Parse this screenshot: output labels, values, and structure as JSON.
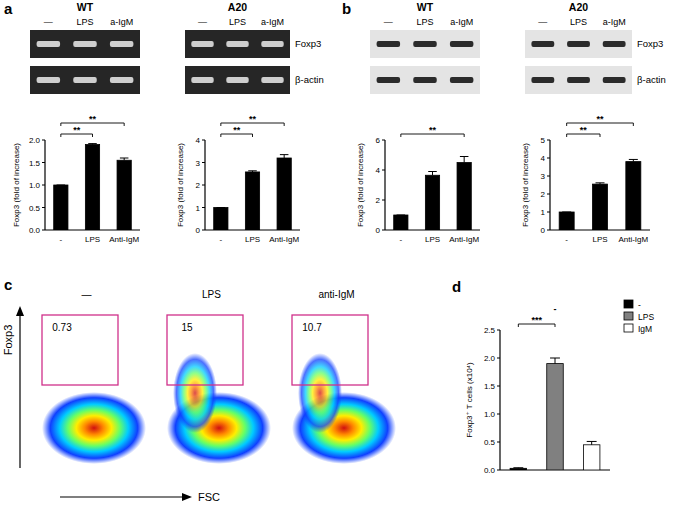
{
  "panel_labels": [
    "a",
    "b",
    "c",
    "d"
  ],
  "blots": [
    {
      "kind": "rt-pcr",
      "group": "WT",
      "lanes": [
        "—",
        "LPS",
        "a-IgM"
      ]
    },
    {
      "kind": "rt-pcr",
      "group": "A20",
      "lanes": [
        "—",
        "LPS",
        "a-IgM"
      ],
      "band_labels": [
        "Foxp3",
        "β-actin"
      ]
    },
    {
      "kind": "western",
      "group": "WT",
      "lanes": [
        "—",
        "LPS",
        "a-IgM"
      ]
    },
    {
      "kind": "western",
      "group": "A20",
      "lanes": [
        "—",
        "LPS",
        "a-IgM"
      ],
      "band_labels": [
        "Foxp3",
        "β-actin"
      ]
    }
  ],
  "chart_data": [
    {
      "type": "bar",
      "ylabel": "Foxp3 (fold of increase)",
      "categories": [
        "-",
        "LPS",
        "Anti-IgM"
      ],
      "values": [
        1,
        1.9,
        1.55
      ],
      "errors": [
        0,
        0.02,
        0.05
      ],
      "color": "#000000",
      "ylim": [
        0,
        2
      ],
      "yticks": [
        {
          "value": 0,
          "label": "0.0"
        },
        {
          "value": 0.5,
          "label": "0.5"
        },
        {
          "value": 1,
          "label": "1.0"
        },
        {
          "value": 1.5,
          "label": "1.5"
        },
        {
          "value": 2,
          "label": "2.0"
        }
      ],
      "annotations": [
        {
          "text": "**",
          "from": "-",
          "to": "LPS"
        },
        {
          "text": "**",
          "from": "-",
          "to": "Anti-IgM"
        }
      ]
    },
    {
      "type": "bar",
      "ylabel": "Foxp3 (fold of increase)",
      "categories": [
        "-",
        "LPS",
        "Anti-IgM"
      ],
      "values": [
        1,
        2.58,
        3.2
      ],
      "errors": [
        0,
        0.05,
        0.15
      ],
      "color": "#000000",
      "ylim": [
        0,
        4
      ],
      "yticks": [
        0,
        1,
        2,
        3,
        4
      ],
      "annotations": [
        {
          "text": "**",
          "from": "-",
          "to": "LPS"
        },
        {
          "text": "**",
          "from": "-",
          "to": "Anti-IgM"
        }
      ]
    },
    {
      "type": "bar",
      "ylabel": "Foxp3 (fold of increase)",
      "categories": [
        "-",
        "LPS",
        "Anti-IgM"
      ],
      "values": [
        1,
        3.65,
        4.5
      ],
      "errors": [
        0,
        0.25,
        0.4
      ],
      "color": "#000000",
      "ylim": [
        0,
        6
      ],
      "yticks": [
        0,
        2,
        4,
        6
      ],
      "annotations": [
        {
          "text": "**",
          "from": "-",
          "to": "Anti-IgM"
        }
      ]
    },
    {
      "type": "bar",
      "ylabel": "Foxp3 (fold of increase)",
      "categories": [
        "-",
        "LPS",
        "Anti-IgM"
      ],
      "values": [
        1,
        2.55,
        3.8
      ],
      "errors": [
        0,
        0.07,
        0.12
      ],
      "color": "#000000",
      "ylim": [
        0,
        5
      ],
      "yticks": [
        0,
        1,
        2,
        3,
        4,
        5
      ],
      "annotations": [
        {
          "text": "**",
          "from": "-",
          "to": "LPS"
        },
        {
          "text": "**",
          "from": "-",
          "to": "Anti-IgM"
        }
      ]
    },
    {
      "type": "flow",
      "xlabel": "FSC",
      "ylabel": "Foxp3",
      "categories": [
        "—",
        "LPS",
        "anti-IgM"
      ],
      "values": [
        0.73,
        15,
        10.7
      ],
      "data_labels": true
    },
    {
      "type": "bar",
      "ylabel": "Foxp3⁺ T cells (x10⁴)",
      "categories": [
        "-",
        "LPS",
        "IgM"
      ],
      "values": [
        0.03,
        1.9,
        0.45
      ],
      "errors": [
        0.01,
        0.1,
        0.06
      ],
      "colors": [
        "#000000",
        "#808080",
        "#ffffff"
      ],
      "ylim": [
        0,
        2.5
      ],
      "yticks": [
        {
          "value": 0,
          "label": "0.0"
        },
        {
          "value": 0.5,
          "label": "0.5"
        },
        {
          "value": 1,
          "label": "1.0"
        },
        {
          "value": 1.5,
          "label": "1.5"
        },
        {
          "value": 2,
          "label": "2.0"
        },
        {
          "value": 2.5,
          "label": "2.5"
        }
      ],
      "tick_labels": "y",
      "legend": "upper right",
      "annotations": [
        {
          "text": "***",
          "from": "-",
          "to": "LPS"
        },
        {
          "text": "-",
          "from": "LPS",
          "to": "LPS"
        }
      ]
    }
  ]
}
